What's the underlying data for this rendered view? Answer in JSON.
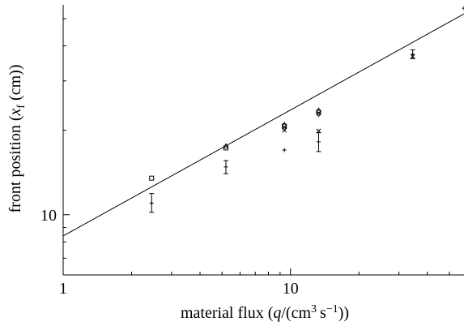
{
  "chart_data": {
    "type": "scatter",
    "title": "",
    "xlabel_parts": {
      "main": "material flux (",
      "var": "q",
      "unit_open": "/(cm",
      "sup1": "3",
      "unit_mid": " s",
      "sup2": "−1",
      "close": "))"
    },
    "ylabel_parts": {
      "main": "front position (",
      "var": "x",
      "sub": "f",
      "close": " (cm))"
    },
    "x_scale": "log",
    "y_scale": "log",
    "xlim": [
      1,
      58
    ],
    "ylim": [
      6.1,
      56
    ],
    "x_ticks": [
      {
        "value": 1,
        "label": "1"
      },
      {
        "value": 10,
        "label": "10"
      }
    ],
    "y_ticks": [
      {
        "value": 10,
        "label": "10"
      }
    ],
    "grid": false,
    "fit_line": {
      "x": [
        1,
        58
      ],
      "y": [
        8.4,
        52
      ]
    },
    "series": [
      {
        "marker": "square",
        "points": [
          {
            "x": 2.45,
            "y": 13.5
          },
          {
            "x": 5.2,
            "y": 17.3
          },
          {
            "x": 9.4,
            "y": 20.7
          },
          {
            "x": 13.3,
            "y": 23.2
          }
        ]
      },
      {
        "marker": "triangle",
        "points": [
          {
            "x": 5.2,
            "y": 17.6
          },
          {
            "x": 9.4,
            "y": 21.0
          },
          {
            "x": 13.3,
            "y": 23.6
          }
        ]
      },
      {
        "marker": "diamond",
        "points": [
          {
            "x": 9.4,
            "y": 20.3
          },
          {
            "x": 13.3,
            "y": 22.8
          }
        ]
      },
      {
        "marker": "cross",
        "points": [
          {
            "x": 9.4,
            "y": 20.0
          },
          {
            "x": 13.3,
            "y": 19.9
          },
          {
            "x": 34.5,
            "y": 36.7
          }
        ]
      },
      {
        "marker": "plus",
        "points": [
          {
            "x": 2.45,
            "y": 11.0,
            "yerr": [
              10.2,
              11.9
            ]
          },
          {
            "x": 5.2,
            "y": 14.8,
            "yerr": [
              14.0,
              15.6
            ]
          },
          {
            "x": 9.4,
            "y": 17.0
          },
          {
            "x": 13.3,
            "y": 18.2,
            "yerr": [
              16.8,
              19.6
            ]
          },
          {
            "x": 34.5,
            "y": 37.3,
            "yerr": [
              36.0,
              38.7
            ]
          },
          {
            "x": 58,
            "y": 54.5
          }
        ]
      }
    ]
  }
}
